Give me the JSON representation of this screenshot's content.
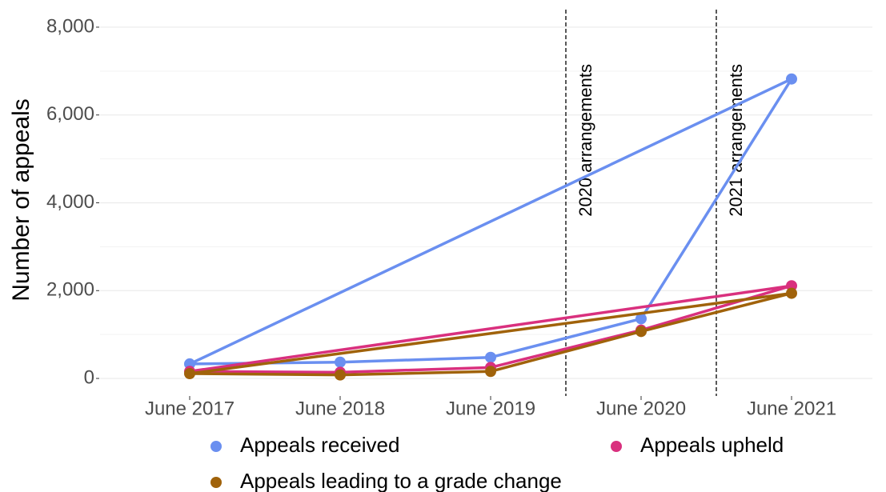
{
  "chart_data": {
    "type": "line",
    "y_label": "Number of appeals",
    "categories": [
      "June 2017",
      "June 2018",
      "June 2019",
      "June 2020",
      "June 2021"
    ],
    "closed": true,
    "series": [
      {
        "name": "Appeals received",
        "color": "#6a8ff0",
        "values": [
          330,
          370,
          480,
          1360,
          6820
        ]
      },
      {
        "name": "Appeals upheld",
        "color": "#d9307e",
        "values": [
          160,
          140,
          250,
          1100,
          2110
        ]
      },
      {
        "name": "Appeals leading to a grade change",
        "color": "#a0620a",
        "values": [
          110,
          80,
          160,
          1070,
          1940
        ]
      }
    ],
    "annotations": [
      "2020 arrangements",
      "2021 arrangements"
    ],
    "ylim": [
      -400,
      8400
    ],
    "yticks": [
      0,
      {
        "value": 2000,
        "label": "2,000"
      },
      {
        "value": 4000,
        "label": "4,000"
      },
      {
        "value": 6000,
        "label": "6,000"
      },
      {
        "value": 8000,
        "label": "8,000"
      }
    ],
    "grid": true
  }
}
